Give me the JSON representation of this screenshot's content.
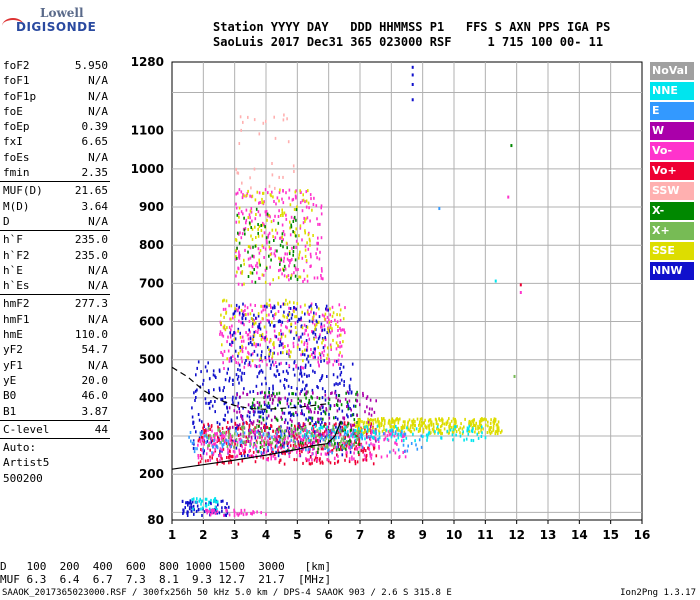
{
  "logo": {
    "line1": "Lowell",
    "line2": "DIGISONDE"
  },
  "header": {
    "line1": "Station YYYY DAY   DDD HHMMSS P1   FFS S AXN PPS IGA PS",
    "line2": "SaoLuis 2017 Dec31 365 023000 RSF     1 715 100 00- 11"
  },
  "params": {
    "group1": [
      {
        "label": "foF2",
        "value": "5.950"
      },
      {
        "label": "foF1",
        "value": "N/A"
      },
      {
        "label": "foF1p",
        "value": "N/A"
      },
      {
        "label": "foE",
        "value": "N/A"
      },
      {
        "label": "foEp",
        "value": "0.39"
      },
      {
        "label": "fxI",
        "value": "6.65"
      },
      {
        "label": "foEs",
        "value": "N/A"
      },
      {
        "label": "fmin",
        "value": "2.35"
      }
    ],
    "group2": [
      {
        "label": "MUF(D)",
        "value": "21.65"
      },
      {
        "label": "M(D)",
        "value": "3.64"
      },
      {
        "label": "D",
        "value": "N/A"
      }
    ],
    "group3": [
      {
        "label": "h`F",
        "value": "235.0"
      },
      {
        "label": "h`F2",
        "value": "235.0"
      },
      {
        "label": "h`E",
        "value": "N/A"
      },
      {
        "label": "h`Es",
        "value": "N/A"
      }
    ],
    "group4": [
      {
        "label": "hmF2",
        "value": "277.3"
      },
      {
        "label": "hmF1",
        "value": "N/A"
      },
      {
        "label": "hmE",
        "value": "110.0"
      },
      {
        "label": "yF2",
        "value": "54.7"
      },
      {
        "label": "yF1",
        "value": "N/A"
      },
      {
        "label": "yE",
        "value": "20.0"
      },
      {
        "label": "B0",
        "value": "46.0"
      },
      {
        "label": "B1",
        "value": "3.87"
      }
    ],
    "group5": [
      {
        "label": "C-level",
        "value": "44"
      }
    ],
    "group6": [
      "Auto:",
      "Artist5",
      "500200"
    ]
  },
  "legend": [
    {
      "label": "NoVal",
      "color": "#a0a0a0"
    },
    {
      "label": "NNE",
      "color": "#00e5ee"
    },
    {
      "label": "E",
      "color": "#3399ff"
    },
    {
      "label": "W",
      "color": "#aa00aa"
    },
    {
      "label": "Vo-",
      "color": "#ff33cc"
    },
    {
      "label": "Vo+",
      "color": "#ee0033"
    },
    {
      "label": "SSW",
      "color": "#ffb0b0"
    },
    {
      "label": "X-",
      "color": "#008800"
    },
    {
      "label": "X+",
      "color": "#77bb55"
    },
    {
      "label": "SSE",
      "color": "#dddd00"
    },
    {
      "label": "NNW",
      "color": "#1010cc"
    }
  ],
  "chart_data": {
    "type": "scatter",
    "xlim": [
      1,
      16
    ],
    "x_ticks": [
      1,
      2,
      3,
      4,
      5,
      6,
      7,
      8,
      9,
      10,
      11,
      12,
      13,
      14,
      15,
      16
    ],
    "ylim": [
      80,
      1280
    ],
    "y_ticks": [
      80,
      200,
      300,
      400,
      500,
      600,
      700,
      800,
      900,
      1000,
      1100,
      1280
    ],
    "grid": true,
    "traces": [
      {
        "name": "profile",
        "style": "solid",
        "points": [
          [
            1.0,
            213
          ],
          [
            2.0,
            225
          ],
          [
            3.0,
            237
          ],
          [
            4.0,
            250
          ],
          [
            5.0,
            265
          ],
          [
            5.5,
            275
          ],
          [
            5.95,
            280
          ],
          [
            6.2,
            300
          ],
          [
            6.4,
            340
          ]
        ]
      },
      {
        "name": "extrapolated",
        "style": "dashed",
        "points": [
          [
            1.0,
            480
          ],
          [
            1.5,
            455
          ],
          [
            2.0,
            420
          ],
          [
            2.5,
            395
          ],
          [
            3.0,
            380
          ],
          [
            3.5,
            372
          ],
          [
            4.0,
            370
          ],
          [
            5.0,
            375
          ],
          [
            6.0,
            385
          ]
        ]
      }
    ],
    "echo_regions": [
      {
        "color": "#1010cc",
        "x": [
          1.6,
          6.8
        ],
        "y": [
          250,
          500
        ],
        "n": 420
      },
      {
        "color": "#ee0033",
        "x": [
          1.8,
          7.5
        ],
        "y": [
          230,
          340
        ],
        "n": 380
      },
      {
        "color": "#ff33cc",
        "x": [
          1.8,
          8.5
        ],
        "y": [
          240,
          320
        ],
        "n": 300
      },
      {
        "color": "#008800",
        "x": [
          3.5,
          7.0
        ],
        "y": [
          260,
          420
        ],
        "n": 140
      },
      {
        "color": "#dddd00",
        "x": [
          6.8,
          11.5
        ],
        "y": [
          310,
          350
        ],
        "n": 340
      },
      {
        "color": "#aa00aa",
        "x": [
          2.8,
          7.5
        ],
        "y": [
          280,
          420
        ],
        "n": 180
      },
      {
        "color": "#00e5ee",
        "x": [
          5.0,
          11.0
        ],
        "y": [
          290,
          330
        ],
        "n": 120
      },
      {
        "color": "#3399ff",
        "x": [
          1.5,
          9.0
        ],
        "y": [
          260,
          320
        ],
        "n": 120
      },
      {
        "color": "#ff33cc",
        "x": [
          2.5,
          6.5
        ],
        "y": [
          480,
          650
        ],
        "n": 260
      },
      {
        "color": "#1010cc",
        "x": [
          2.8,
          6.0
        ],
        "y": [
          500,
          650
        ],
        "n": 160
      },
      {
        "color": "#dddd00",
        "x": [
          2.5,
          6.5
        ],
        "y": [
          500,
          660
        ],
        "n": 140
      },
      {
        "color": "#ff33cc",
        "x": [
          3.0,
          5.8
        ],
        "y": [
          700,
          950
        ],
        "n": 220
      },
      {
        "color": "#dddd00",
        "x": [
          3.0,
          5.5
        ],
        "y": [
          700,
          950
        ],
        "n": 120
      },
      {
        "color": "#008800",
        "x": [
          3.0,
          5.0
        ],
        "y": [
          700,
          900
        ],
        "n": 60
      },
      {
        "color": "#ffb0b0",
        "x": [
          3.0,
          5.0
        ],
        "y": [
          950,
          1150
        ],
        "n": 30
      },
      {
        "color": "#1010cc",
        "x": [
          1.3,
          2.8
        ],
        "y": [
          95,
          135
        ],
        "n": 70
      },
      {
        "color": "#00e5ee",
        "x": [
          1.5,
          2.5
        ],
        "y": [
          110,
          140
        ],
        "n": 30
      },
      {
        "color": "#ff33cc",
        "x": [
          2.0,
          4.0
        ],
        "y": [
          95,
          110
        ],
        "n": 40
      },
      {
        "color": "#77bb55",
        "x": [
          2.0,
          7.0
        ],
        "y": [
          270,
          330
        ],
        "n": 120
      }
    ],
    "isolated_points": [
      {
        "color": "#1010cc",
        "x": 8.65,
        "y": 1270
      },
      {
        "color": "#1010cc",
        "x": 8.65,
        "y": 1250
      },
      {
        "color": "#1010cc",
        "x": 8.65,
        "y": 1225
      },
      {
        "color": "#1010cc",
        "x": 8.65,
        "y": 1185
      },
      {
        "color": "#008800",
        "x": 11.8,
        "y": 1065
      },
      {
        "color": "#ff33cc",
        "x": 11.7,
        "y": 930
      },
      {
        "color": "#3399ff",
        "x": 9.5,
        "y": 900
      },
      {
        "color": "#00e5ee",
        "x": 11.3,
        "y": 710
      },
      {
        "color": "#ee0033",
        "x": 12.1,
        "y": 700
      },
      {
        "color": "#ff33cc",
        "x": 12.1,
        "y": 680
      },
      {
        "color": "#77bb55",
        "x": 11.9,
        "y": 460
      }
    ]
  },
  "bottom": {
    "row1_label": "D",
    "row1": [
      "100",
      "200",
      "400",
      "600",
      "800",
      "1000",
      "1500",
      "3000",
      "[km]"
    ],
    "row2_label": "MUF",
    "row2": [
      "6.3",
      "6.4",
      "6.7",
      "7.3",
      "8.1",
      "9.3",
      "12.7",
      "21.7",
      "[MHz]"
    ]
  },
  "footer": {
    "left": "SAAOK_2017365023000.RSF / 300fx256h 50 kHz 5.0 km / DPS-4 SAAOK 903 / 2.6 S 315.8 E",
    "right": "Ion2Png 1.3.17"
  }
}
